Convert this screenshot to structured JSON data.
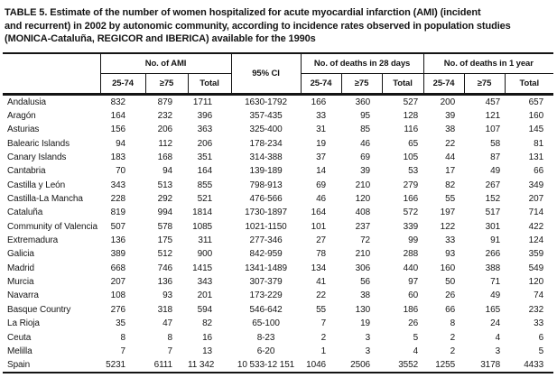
{
  "title": {
    "line1": "TABLE 5. Estimate of the number of women hospitalized for acute myocardial infarction (AMI) (incident",
    "line2": "and recurrent) in 2002 by autonomic community, according to incidence rates observed in population studies",
    "line3": "(MONICA-Cataluña, REGICOR and IBERICA) available for the 1990s"
  },
  "table": {
    "column_groups": [
      {
        "label": "No. of AMI",
        "columns": [
          "25-74",
          "≥75",
          "Total"
        ]
      },
      {
        "label": "95% CI"
      },
      {
        "label": "No. of deaths in 28 days",
        "columns": [
          "25-74",
          "≥75",
          "Total"
        ]
      },
      {
        "label": "No. of deaths in 1 year",
        "columns": [
          "25-74",
          "≥75",
          "Total"
        ]
      }
    ],
    "rows": [
      {
        "region": "Andalusia",
        "values": [
          "832",
          "879",
          "1711",
          "1630-1792",
          "166",
          "360",
          "527",
          "200",
          "457",
          "657"
        ]
      },
      {
        "region": "Aragón",
        "values": [
          "164",
          "232",
          "396",
          "357-435",
          "33",
          "95",
          "128",
          "39",
          "121",
          "160"
        ]
      },
      {
        "region": "Asturias",
        "values": [
          "156",
          "206",
          "363",
          "325-400",
          "31",
          "85",
          "116",
          "38",
          "107",
          "145"
        ]
      },
      {
        "region": "Balearic Islands",
        "values": [
          "94",
          "112",
          "206",
          "178-234",
          "19",
          "46",
          "65",
          "22",
          "58",
          "81"
        ]
      },
      {
        "region": "Canary Islands",
        "values": [
          "183",
          "168",
          "351",
          "314-388",
          "37",
          "69",
          "105",
          "44",
          "87",
          "131"
        ]
      },
      {
        "region": "Cantabria",
        "values": [
          "70",
          "94",
          "164",
          "139-189",
          "14",
          "39",
          "53",
          "17",
          "49",
          "66"
        ]
      },
      {
        "region": "Castilla y León",
        "values": [
          "343",
          "513",
          "855",
          "798-913",
          "69",
          "210",
          "279",
          "82",
          "267",
          "349"
        ]
      },
      {
        "region": "Castilla-La Mancha",
        "values": [
          "228",
          "292",
          "521",
          "476-566",
          "46",
          "120",
          "166",
          "55",
          "152",
          "207"
        ]
      },
      {
        "region": "Cataluña",
        "values": [
          "819",
          "994",
          "1814",
          "1730-1897",
          "164",
          "408",
          "572",
          "197",
          "517",
          "714"
        ]
      },
      {
        "region": "Community of Valencia",
        "values": [
          "507",
          "578",
          "1085",
          "1021-1150",
          "101",
          "237",
          "339",
          "122",
          "301",
          "422"
        ]
      },
      {
        "region": "Extremadura",
        "values": [
          "136",
          "175",
          "311",
          "277-346",
          "27",
          "72",
          "99",
          "33",
          "91",
          "124"
        ]
      },
      {
        "region": "Galicia",
        "values": [
          "389",
          "512",
          "900",
          "842-959",
          "78",
          "210",
          "288",
          "93",
          "266",
          "359"
        ]
      },
      {
        "region": "Madrid",
        "values": [
          "668",
          "746",
          "1415",
          "1341-1489",
          "134",
          "306",
          "440",
          "160",
          "388",
          "549"
        ]
      },
      {
        "region": "Murcia",
        "values": [
          "207",
          "136",
          "343",
          "307-379",
          "41",
          "56",
          "97",
          "50",
          "71",
          "120"
        ]
      },
      {
        "region": "Navarra",
        "values": [
          "108",
          "93",
          "201",
          "173-229",
          "22",
          "38",
          "60",
          "26",
          "49",
          "74"
        ]
      },
      {
        "region": "Basque Country",
        "values": [
          "276",
          "318",
          "594",
          "546-642",
          "55",
          "130",
          "186",
          "66",
          "165",
          "232"
        ]
      },
      {
        "region": "La Rioja",
        "values": [
          "35",
          "47",
          "82",
          "65-100",
          "7",
          "19",
          "26",
          "8",
          "24",
          "33"
        ]
      },
      {
        "region": "Ceuta",
        "values": [
          "8",
          "8",
          "16",
          "8-23",
          "2",
          "3",
          "5",
          "2",
          "4",
          "6"
        ]
      },
      {
        "region": "Melilla",
        "values": [
          "7",
          "7",
          "13",
          "6-20",
          "1",
          "3",
          "4",
          "2",
          "3",
          "5"
        ]
      },
      {
        "region": "Spain",
        "values": [
          "5231",
          "6111",
          "11 342",
          "10 533-12 151",
          "1046",
          "2506",
          "3552",
          "1255",
          "3178",
          "4433"
        ]
      }
    ]
  },
  "colors": {
    "ink": "#141414",
    "background": "#ffffff"
  }
}
